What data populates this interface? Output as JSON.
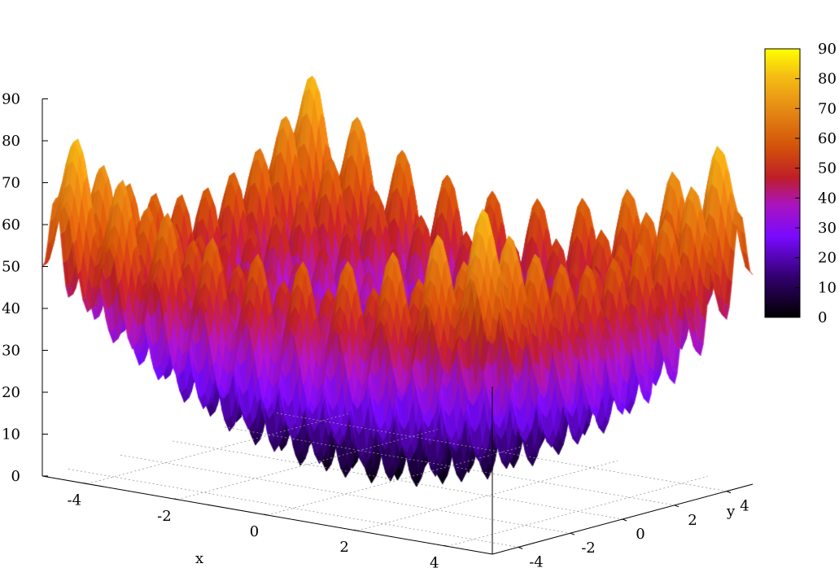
{
  "chart_data": {
    "type": "surface",
    "function": "Rastrigin: z = 20 + x^2 - 10cos(2πx) + y^2 - 10cos(2πy)",
    "x_range": [
      -5,
      5
    ],
    "y_range": [
      -5,
      5
    ],
    "zlim": [
      0,
      90
    ],
    "xlabel": "x",
    "ylabel": "y",
    "xticks": [
      "-4",
      "-2",
      "0",
      "2",
      "4"
    ],
    "yticks": [
      "-4",
      "-2",
      "0",
      "2",
      "4"
    ],
    "zticks": [
      "0",
      "10",
      "20",
      "30",
      "40",
      "50",
      "60",
      "70",
      "80",
      "90"
    ],
    "colorbar": {
      "min": 0,
      "max": 90,
      "ticks": [
        "0",
        "10",
        "20",
        "30",
        "40",
        "50",
        "60",
        "70",
        "80",
        "90"
      ],
      "palette": "black-purple-red-orange-yellow"
    },
    "grid": true,
    "legend": "colorbar-top-right"
  }
}
